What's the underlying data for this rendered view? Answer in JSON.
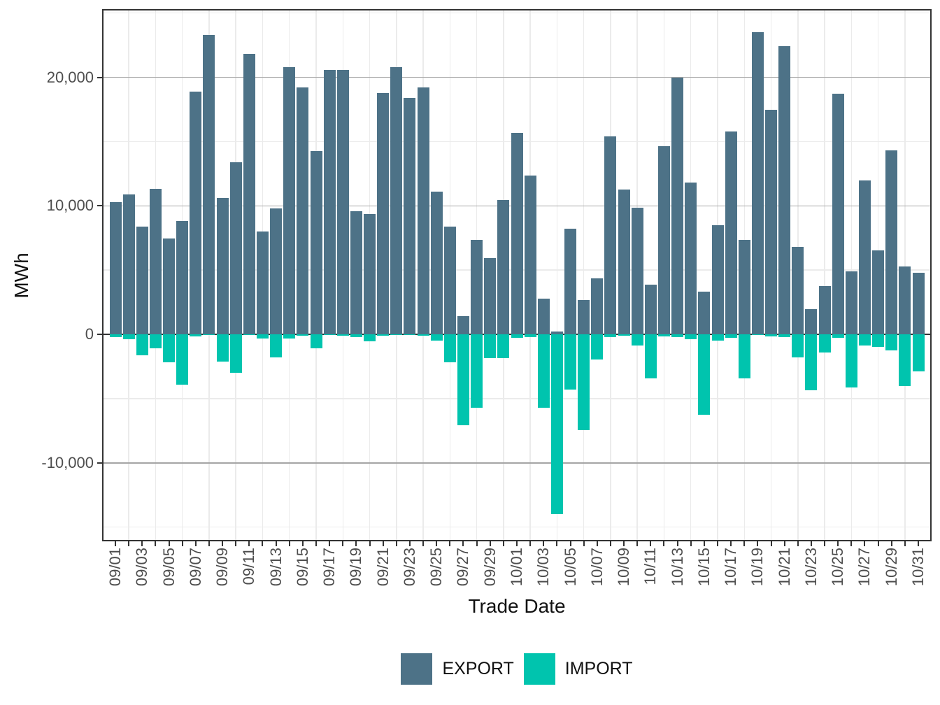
{
  "chart_data": {
    "type": "bar",
    "title": "",
    "xlabel": "Trade Date",
    "ylabel": "MWh",
    "grid": true,
    "legend_position": "bottom",
    "bar_style": "dodged-diverging",
    "ylim": [
      -16000,
      25200
    ],
    "categories": [
      "09/01",
      "09/02",
      "09/03",
      "09/04",
      "09/05",
      "09/06",
      "09/07",
      "09/08",
      "09/09",
      "09/10",
      "09/11",
      "09/12",
      "09/13",
      "09/14",
      "09/15",
      "09/16",
      "09/17",
      "09/18",
      "09/19",
      "09/20",
      "09/21",
      "09/22",
      "09/23",
      "09/24",
      "09/25",
      "09/26",
      "09/27",
      "09/28",
      "09/29",
      "09/30",
      "10/01",
      "10/02",
      "10/03",
      "10/04",
      "10/05",
      "10/06",
      "10/07",
      "10/08",
      "10/09",
      "10/10",
      "10/11",
      "10/12",
      "10/13",
      "10/14",
      "10/15",
      "10/16",
      "10/17",
      "10/18",
      "10/19",
      "10/20",
      "10/21",
      "10/22",
      "10/23",
      "10/24",
      "10/25",
      "10/26",
      "10/27",
      "10/28",
      "10/29",
      "10/30",
      "10/31"
    ],
    "series": [
      {
        "name": "EXPORT",
        "color": "#4d7287",
        "values": [
          10300,
          10900,
          8400,
          11300,
          7450,
          8800,
          18900,
          23300,
          10600,
          13400,
          21800,
          8000,
          9800,
          20800,
          19200,
          14250,
          20600,
          20600,
          9600,
          9350,
          18800,
          20800,
          18400,
          19200,
          11100,
          8400,
          1400,
          7350,
          5950,
          10450,
          15650,
          12350,
          2750,
          200,
          8200,
          2650,
          4350,
          15400,
          11250,
          9850,
          3850,
          14650,
          19950,
          11800,
          3300,
          8500,
          15800,
          7350,
          23500,
          17450,
          22450,
          6800,
          1950,
          3750,
          18750,
          4900,
          12000,
          6550,
          14300,
          5300,
          4800
        ]
      },
      {
        "name": "IMPORT",
        "color": "#00c4ae",
        "values": [
          -200,
          -400,
          -1650,
          -1100,
          -2150,
          -3900,
          -150,
          -50,
          -2100,
          -3000,
          -50,
          -350,
          -1800,
          -350,
          -100,
          -1100,
          -50,
          -100,
          -200,
          -550,
          -100,
          -50,
          -50,
          -100,
          -500,
          -2150,
          -7100,
          -5700,
          -1850,
          -1850,
          -250,
          -200,
          -5700,
          -14000,
          -4300,
          -7450,
          -1950,
          -200,
          -100,
          -850,
          -3450,
          -150,
          -200,
          -400,
          -6250,
          -500,
          -250,
          -3450,
          -50,
          -150,
          -200,
          -1800,
          -4350,
          -1400,
          -250,
          -4150,
          -850,
          -1000,
          -1250,
          -4000,
          -2900
        ]
      }
    ],
    "y_major_ticks": [
      {
        "label": "20,000",
        "value": 20000
      },
      {
        "label": "10,000",
        "value": 10000
      },
      {
        "label": "0",
        "value": 0
      },
      {
        "label": "-10,000",
        "value": -10000
      }
    ],
    "y_minor_gridlines": [
      25000,
      15000,
      5000,
      -5000,
      -15000
    ],
    "x_tick_labels": [
      "09/01",
      "09/03",
      "09/05",
      "09/07",
      "09/09",
      "09/11",
      "09/13",
      "09/15",
      "09/17",
      "09/19",
      "09/21",
      "09/23",
      "09/25",
      "09/27",
      "09/29",
      "10/01",
      "10/03",
      "10/05",
      "10/07",
      "10/09",
      "10/11",
      "10/13",
      "10/15",
      "10/17",
      "10/19",
      "10/21",
      "10/23",
      "10/25",
      "10/27",
      "10/29",
      "10/31"
    ],
    "colors": {
      "export": "#4d7287",
      "import": "#00c4ae",
      "grid_major": "#a5a5a5",
      "grid_minor": "#ebebeb",
      "zero_line": "#333333",
      "panel_border": "#333333",
      "axis_text": "#4d4d4d",
      "title_text": "#111111"
    }
  }
}
